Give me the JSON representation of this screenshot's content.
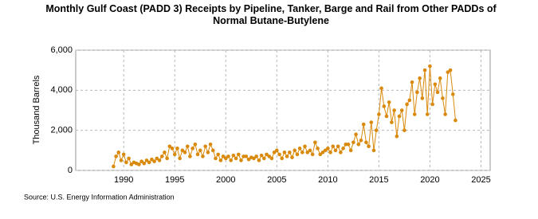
{
  "chart_data": {
    "type": "line",
    "title": "Monthly Gulf Coast (PADD 3) Receipts by Pipeline, Tanker, Barge and Rail from Other PADDs of Normal Butane-Butylene",
    "y_label": "Thousand Barrels",
    "source": "Source: U.S. Energy Information Administration",
    "xlim": [
      1985.3,
      2025.9
    ],
    "xticks": [
      1990,
      1995,
      2000,
      2005,
      2010,
      2015,
      2020,
      2025
    ],
    "ylim": [
      0,
      6000
    ],
    "yticks": [
      0,
      {
        "value": 2000,
        "label": "2,000"
      },
      {
        "value": 4000,
        "label": "4,000"
      },
      {
        "value": 6000,
        "label": "6,000"
      }
    ],
    "grid": true,
    "series": [
      {
        "name": "Normal Butane-Butylene",
        "color": "#d98a0c",
        "x": [
          1989,
          1989.25,
          1989.5,
          1989.75,
          1990,
          1990.25,
          1990.5,
          1990.75,
          1991,
          1991.25,
          1991.5,
          1991.75,
          1992,
          1992.25,
          1992.5,
          1992.75,
          1993,
          1993.25,
          1993.5,
          1993.75,
          1994,
          1994.25,
          1994.5,
          1994.75,
          1995,
          1995.25,
          1995.5,
          1995.75,
          1996,
          1996.25,
          1996.5,
          1996.75,
          1997,
          1997.25,
          1997.5,
          1997.75,
          1998,
          1998.25,
          1998.5,
          1998.75,
          1999,
          1999.25,
          1999.5,
          1999.75,
          2000,
          2000.25,
          2000.5,
          2000.75,
          2001,
          2001.25,
          2001.5,
          2001.75,
          2002,
          2002.25,
          2002.5,
          2002.75,
          2003,
          2003.25,
          2003.5,
          2003.75,
          2004,
          2004.25,
          2004.5,
          2004.75,
          2005,
          2005.25,
          2005.5,
          2005.75,
          2006,
          2006.25,
          2006.5,
          2006.75,
          2007,
          2007.25,
          2007.5,
          2007.75,
          2008,
          2008.25,
          2008.5,
          2008.75,
          2009,
          2009.25,
          2009.5,
          2009.75,
          2010,
          2010.25,
          2010.5,
          2010.75,
          2011,
          2011.25,
          2011.5,
          2011.75,
          2012,
          2012.25,
          2012.5,
          2012.75,
          2013,
          2013.25,
          2013.5,
          2013.75,
          2014,
          2014.25,
          2014.5,
          2014.75,
          2015,
          2015.25,
          2015.5,
          2015.75,
          2016,
          2016.25,
          2016.5,
          2016.75,
          2017,
          2017.25,
          2017.5,
          2017.75,
          2018,
          2018.25,
          2018.5,
          2018.75,
          2019,
          2019.25,
          2019.5,
          2019.75,
          2020,
          2020.25,
          2020.5,
          2020.75,
          2021,
          2021.25,
          2021.5,
          2021.75,
          2022,
          2022.25,
          2022.5
        ],
        "values": [
          200,
          700,
          900,
          500,
          800,
          400,
          600,
          300,
          400,
          350,
          300,
          450,
          350,
          500,
          400,
          550,
          450,
          600,
          500,
          700,
          900,
          600,
          1200,
          1100,
          800,
          1100,
          600,
          1000,
          900,
          1200,
          700,
          1100,
          1300,
          800,
          1000,
          700,
          1200,
          900,
          1300,
          1000,
          600,
          800,
          500,
          700,
          600,
          700,
          500,
          750,
          600,
          800,
          500,
          700,
          700,
          550,
          650,
          600,
          700,
          500,
          750,
          600,
          800,
          700,
          600,
          900,
          1000,
          800,
          600,
          900,
          700,
          900,
          650,
          1000,
          800,
          1100,
          900,
          1200,
          900,
          1000,
          800,
          1400,
          1100,
          800,
          900,
          1000,
          1100,
          900,
          1200,
          1000,
          1200,
          900,
          1100,
          1300,
          1300,
          1000,
          1400,
          1800,
          1300,
          1500,
          2300,
          1400,
          1200,
          2400,
          1000,
          2000,
          2800,
          4100,
          3200,
          2700,
          3400,
          2400,
          3000,
          1700,
          2700,
          3000,
          2000,
          3300,
          3500,
          4400,
          2800,
          3900,
          4600,
          3600,
          5000,
          2800,
          5200,
          3300,
          4300,
          3900,
          4600,
          3600,
          2800,
          4900,
          5000,
          3800,
          2500
        ]
      }
    ]
  }
}
